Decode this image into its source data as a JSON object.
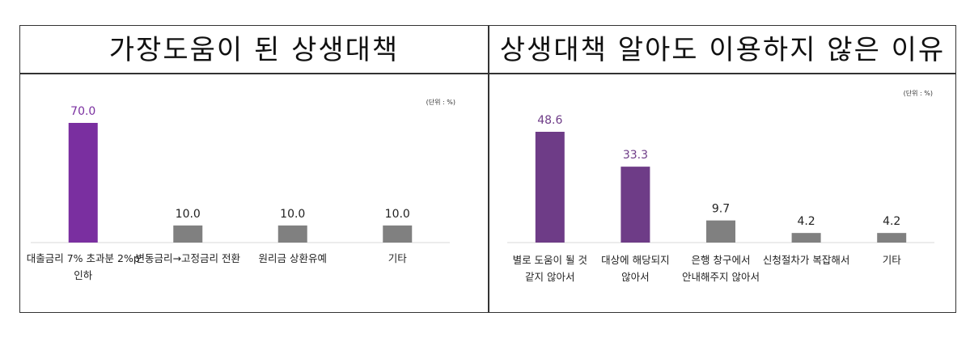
{
  "panels": [
    {
      "title": "가장도움이 된 상생대책",
      "unit": "(단위 : %)"
    },
    {
      "title": "상생대책 알아도 이용하지 않은 이유",
      "unit": "(단위 : %)"
    }
  ],
  "colors": {
    "highlight": "#7a2fa0",
    "highlight2": "#6e3c87",
    "normal": "#808080"
  },
  "chart_data": [
    {
      "type": "bar",
      "categories": [
        [
          "대출금리 7% 초과분 2%p",
          "인하"
        ],
        [
          "변동금리→고정금리 전환"
        ],
        [
          "원리금 상환유예"
        ],
        [
          "기타"
        ]
      ],
      "values": [
        70.0,
        10.0,
        10.0,
        10.0
      ],
      "value_labels": [
        "70.0",
        "10.0",
        "10.0",
        "10.0"
      ],
      "highlight": [
        true,
        false,
        false,
        false
      ],
      "ylim": [
        0,
        70
      ]
    },
    {
      "type": "bar",
      "categories": [
        [
          "별로 도움이 될 것",
          "같지 않아서"
        ],
        [
          "대상에 해당되지",
          "않아서"
        ],
        [
          "은행 창구에서",
          "안내해주지 않아서"
        ],
        [
          "신청절차가 복잡해서"
        ],
        [
          "기타"
        ]
      ],
      "values": [
        48.6,
        33.3,
        9.7,
        4.2,
        4.2
      ],
      "value_labels": [
        "48.6",
        "33.3",
        "9.7",
        "4.2",
        "4.2"
      ],
      "highlight": [
        true,
        true,
        false,
        false,
        false
      ],
      "ylim": [
        0,
        48.6
      ]
    }
  ]
}
